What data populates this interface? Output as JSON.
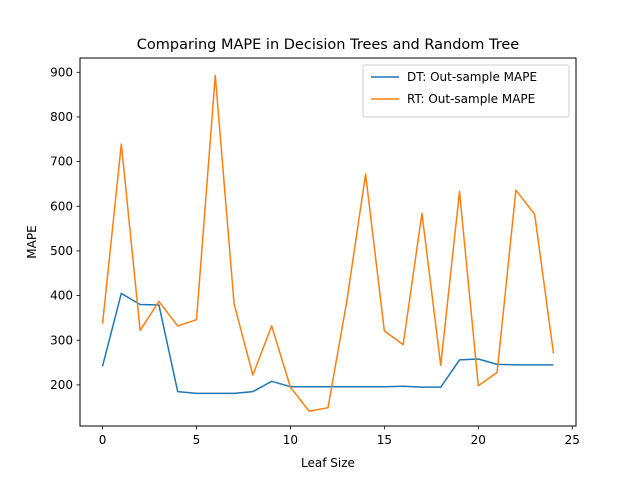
{
  "chart_data": {
    "type": "line",
    "title": "Comparing MAPE in Decision Trees and Random Tree",
    "xlabel": "Leaf Size",
    "ylabel": "MAPE",
    "xlim": [
      -1.2,
      25.2
    ],
    "ylim": [
      108,
      932
    ],
    "x_ticks": [
      0,
      5,
      10,
      15,
      20,
      25
    ],
    "y_ticks": [
      200,
      300,
      400,
      500,
      600,
      700,
      800,
      900
    ],
    "grid": false,
    "legend_position": "top-right",
    "x": [
      0,
      1,
      2,
      3,
      4,
      5,
      6,
      7,
      8,
      9,
      10,
      11,
      12,
      13,
      14,
      15,
      16,
      17,
      18,
      19,
      20,
      21,
      22,
      23,
      24
    ],
    "series": [
      {
        "name": "DT: Out-sample MAPE",
        "color": "#1f77b4",
        "values": [
          242,
          405,
          380,
          379,
          185,
          181,
          181,
          181,
          185,
          208,
          196,
          196,
          196,
          196,
          196,
          196,
          197,
          195,
          195,
          256,
          258,
          246,
          245,
          245,
          245
        ]
      },
      {
        "name": "RT: Out-sample MAPE",
        "color": "#ff7f0e",
        "values": [
          337,
          739,
          322,
          387,
          332,
          346,
          893,
          382,
          222,
          332,
          195,
          141,
          149,
          387,
          672,
          321,
          290,
          584,
          244,
          633,
          198,
          228,
          636,
          582,
          271
        ]
      }
    ]
  }
}
